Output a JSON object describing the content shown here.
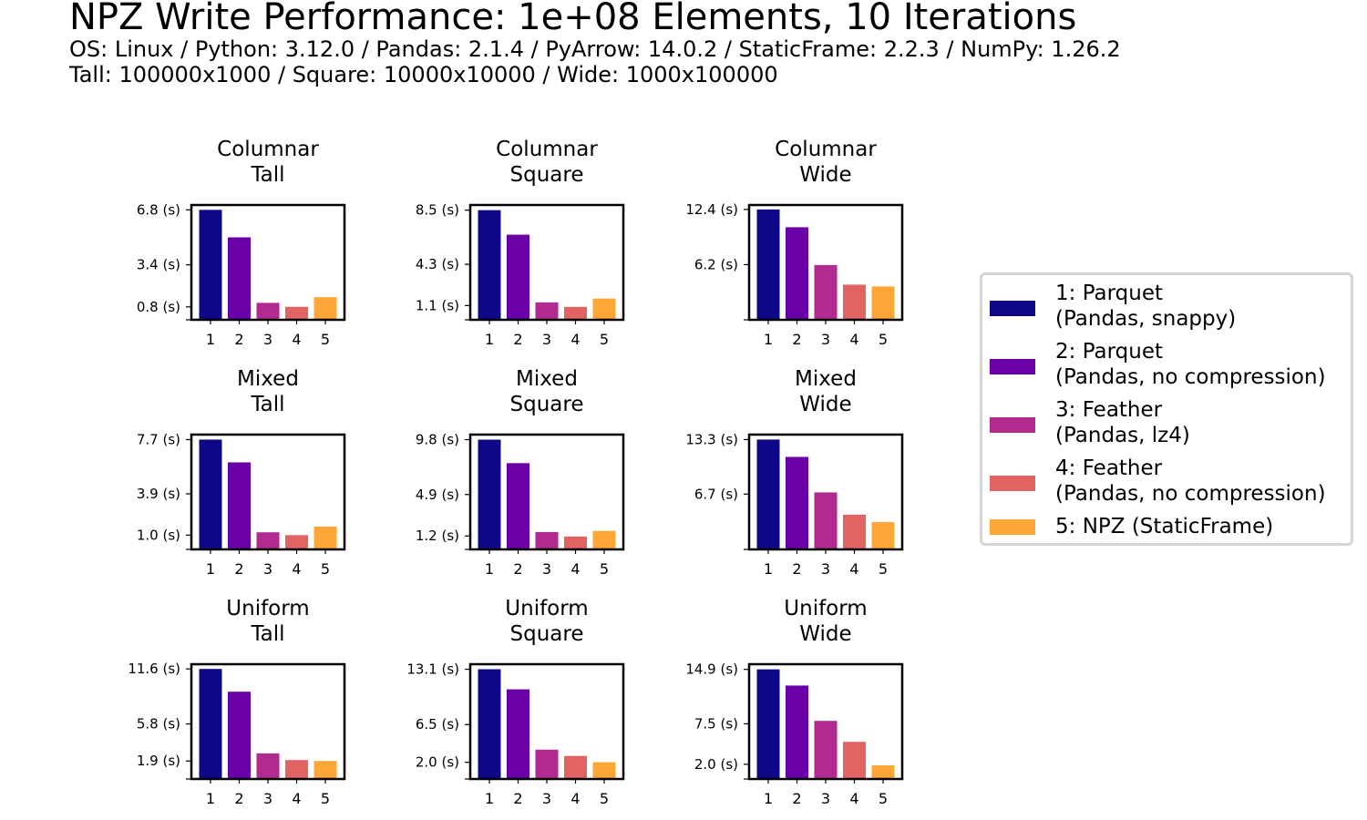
{
  "title": "NPZ Write Performance: 1e+08 Elements, 10 Iterations",
  "subtitle_line1": "OS: Linux / Python: 3.12.0 / Pandas: 2.1.4 / PyArrow: 14.0.2 / StaticFrame: 2.2.3 / NumPy: 1.26.2",
  "subtitle_line2": "Tall: 100000x1000 / Square: 10000x10000 / Wide: 1000x100000",
  "legend": {
    "entries": [
      {
        "line1": "1: Parquet",
        "line2": "(Pandas, snappy)",
        "color": "#0d0887"
      },
      {
        "line1": "2: Parquet",
        "line2": "(Pandas, no compression)",
        "color": "#6a00a8"
      },
      {
        "line1": "3: Feather",
        "line2": "(Pandas, lz4)",
        "color": "#b12a90"
      },
      {
        "line1": "4: Feather",
        "line2": "(Pandas, no compression)",
        "color": "#e16462"
      },
      {
        "line1": "5: NPZ (StaticFrame)",
        "line2": "",
        "color": "#fca636"
      }
    ]
  },
  "chart_data": [
    {
      "type": "bar",
      "title_line1": "Columnar",
      "title_line2": "Tall",
      "categories": [
        "1",
        "2",
        "3",
        "4",
        "5"
      ],
      "values": [
        6.8,
        5.1,
        1.05,
        0.8,
        1.4
      ],
      "yticks": [
        0.8,
        3.4,
        6.8
      ],
      "ytick_labels": [
        "0.8 (s)",
        "3.4 (s)",
        "6.8 (s)"
      ],
      "ylim": [
        0,
        7.1
      ],
      "xlabel": "",
      "ylabel": ""
    },
    {
      "type": "bar",
      "title_line1": "Columnar",
      "title_line2": "Square",
      "categories": [
        "1",
        "2",
        "3",
        "4",
        "5"
      ],
      "values": [
        8.5,
        6.6,
        1.35,
        1.0,
        1.65
      ],
      "yticks": [
        1.1,
        4.3,
        8.5
      ],
      "ytick_labels": [
        "1.1 (s)",
        "4.3 (s)",
        "8.5 (s)"
      ],
      "ylim": [
        0,
        8.9
      ],
      "xlabel": "",
      "ylabel": ""
    },
    {
      "type": "bar",
      "title_line1": "Columnar",
      "title_line2": "Wide",
      "categories": [
        "1",
        "2",
        "3",
        "4",
        "5"
      ],
      "values": [
        12.4,
        10.4,
        6.15,
        3.95,
        3.75
      ],
      "yticks": [
        6.2,
        12.4
      ],
      "ytick_labels": [
        "6.2 (s)",
        "12.4 (s)"
      ],
      "ylim": [
        0,
        12.9
      ],
      "xlabel": "",
      "ylabel": ""
    },
    {
      "type": "bar",
      "title_line1": "Mixed",
      "title_line2": "Tall",
      "categories": [
        "1",
        "2",
        "3",
        "4",
        "5"
      ],
      "values": [
        7.7,
        6.1,
        1.2,
        1.0,
        1.6
      ],
      "yticks": [
        1.0,
        3.9,
        7.7
      ],
      "ytick_labels": [
        "1.0 (s)",
        "3.9 (s)",
        "7.7 (s)"
      ],
      "ylim": [
        0,
        8.05
      ],
      "xlabel": "",
      "ylabel": ""
    },
    {
      "type": "bar",
      "title_line1": "Mixed",
      "title_line2": "Square",
      "categories": [
        "1",
        "2",
        "3",
        "4",
        "5"
      ],
      "values": [
        9.8,
        7.7,
        1.55,
        1.15,
        1.65
      ],
      "yticks": [
        1.2,
        4.9,
        9.8
      ],
      "ytick_labels": [
        "1.2 (s)",
        "4.9 (s)",
        "9.8 (s)"
      ],
      "ylim": [
        0,
        10.25
      ],
      "xlabel": "",
      "ylabel": ""
    },
    {
      "type": "bar",
      "title_line1": "Mixed",
      "title_line2": "Wide",
      "categories": [
        "1",
        "2",
        "3",
        "4",
        "5"
      ],
      "values": [
        13.3,
        11.2,
        6.9,
        4.2,
        3.3
      ],
      "yticks": [
        6.7,
        13.3
      ],
      "ytick_labels": [
        "6.7 (s)",
        "13.3 (s)"
      ],
      "ylim": [
        0,
        13.9
      ],
      "xlabel": "",
      "ylabel": ""
    },
    {
      "type": "bar",
      "title_line1": "Uniform",
      "title_line2": "Tall",
      "categories": [
        "1",
        "2",
        "3",
        "4",
        "5"
      ],
      "values": [
        11.6,
        9.2,
        2.7,
        2.0,
        1.9
      ],
      "yticks": [
        1.9,
        5.8,
        11.6
      ],
      "ytick_labels": [
        "1.9 (s)",
        "5.8 (s)",
        "11.6 (s)"
      ],
      "ylim": [
        0,
        12.1
      ],
      "xlabel": "",
      "ylabel": ""
    },
    {
      "type": "bar",
      "title_line1": "Uniform",
      "title_line2": "Square",
      "categories": [
        "1",
        "2",
        "3",
        "4",
        "5"
      ],
      "values": [
        13.1,
        10.7,
        3.5,
        2.75,
        2.0
      ],
      "yticks": [
        2.0,
        6.5,
        13.1
      ],
      "ytick_labels": [
        "2.0 (s)",
        "6.5 (s)",
        "13.1 (s)"
      ],
      "ylim": [
        0,
        13.7
      ],
      "xlabel": "",
      "ylabel": ""
    },
    {
      "type": "bar",
      "title_line1": "Uniform",
      "title_line2": "Wide",
      "categories": [
        "1",
        "2",
        "3",
        "4",
        "5"
      ],
      "values": [
        14.9,
        12.7,
        7.9,
        5.05,
        1.85
      ],
      "yticks": [
        2.0,
        7.5,
        14.9
      ],
      "ytick_labels": [
        "2.0 (s)",
        "7.5 (s)",
        "14.9 (s)"
      ],
      "ylim": [
        0,
        15.6
      ],
      "xlabel": "",
      "ylabel": ""
    }
  ]
}
